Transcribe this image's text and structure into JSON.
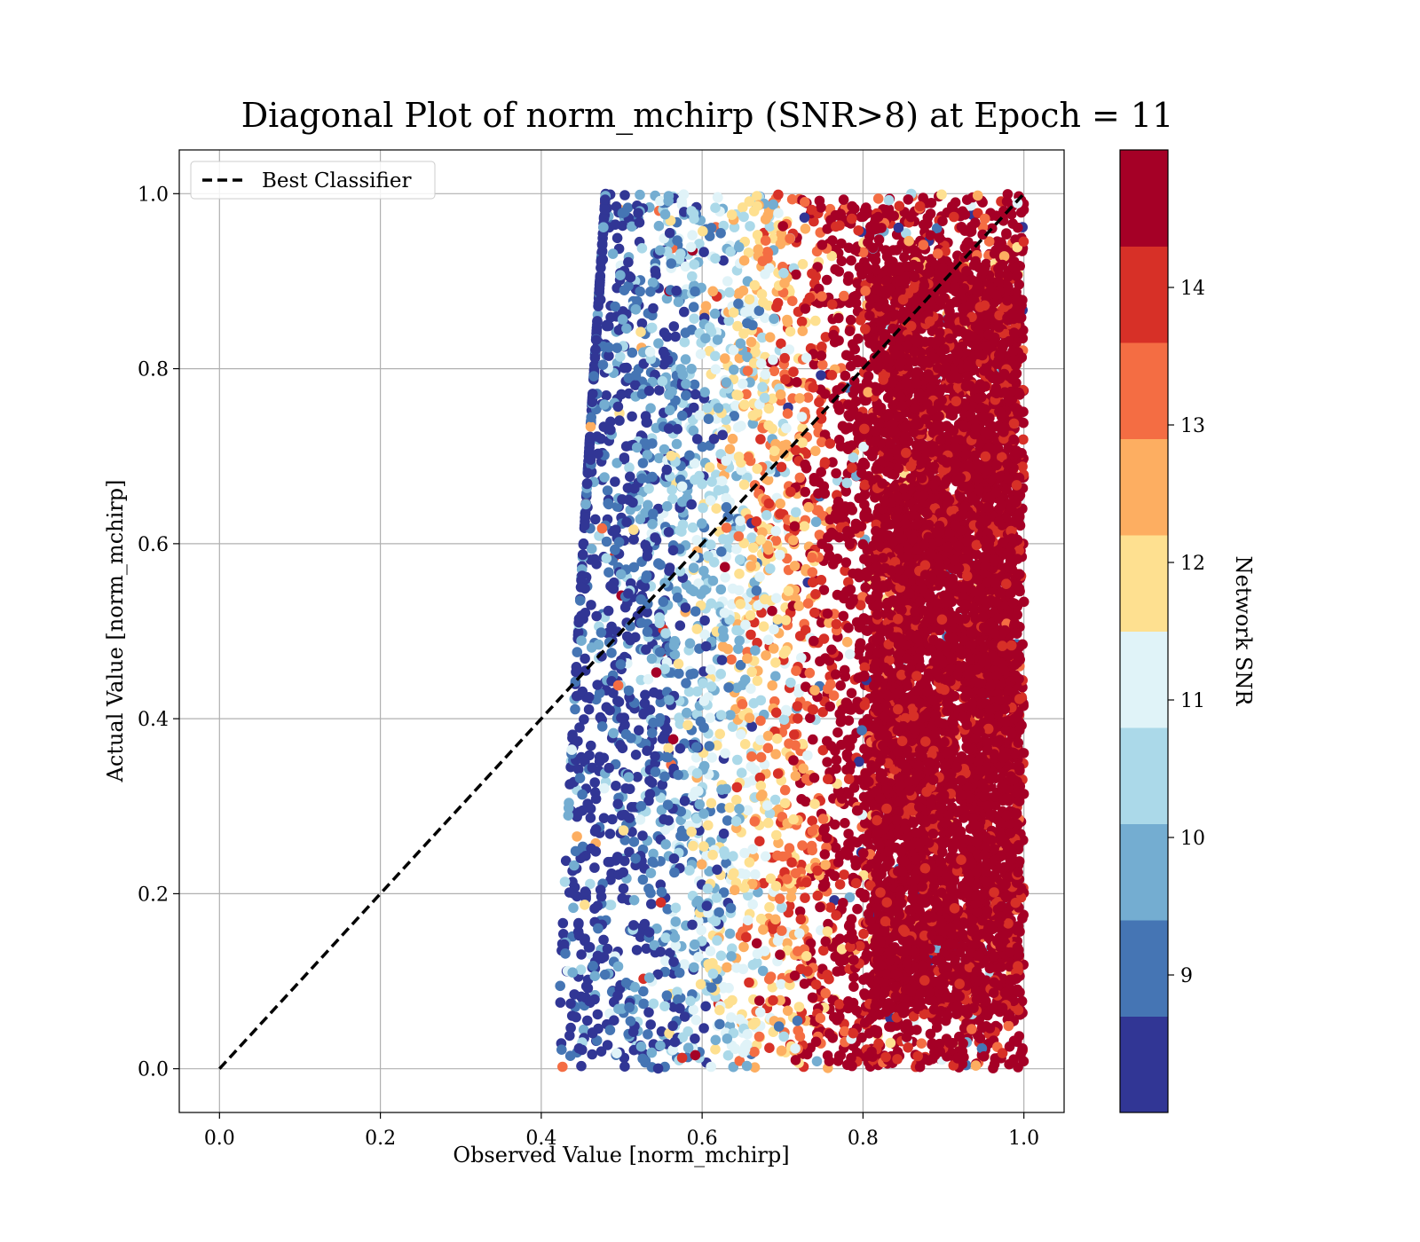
{
  "chart_data": {
    "type": "scatter",
    "title": "Diagonal Plot of norm_mchirp (SNR>8) at Epoch = 11",
    "xlabel": "Observed Value [norm_mchirp]",
    "ylabel": "Actual Value [norm_mchirp]",
    "xlim": [
      -0.05,
      1.05
    ],
    "ylim": [
      -0.05,
      1.05
    ],
    "xticks": [
      "0.0",
      "0.2",
      "0.4",
      "0.6",
      "0.8",
      "1.0"
    ],
    "yticks": [
      "0.0",
      "0.2",
      "0.4",
      "0.6",
      "0.8",
      "1.0"
    ],
    "grid": true,
    "legend": {
      "placement": "upper-left",
      "entries": [
        "Best Classifier"
      ]
    },
    "reference_line": {
      "name": "Best Classifier",
      "x": [
        0.0,
        1.0
      ],
      "y": [
        0.0,
        1.0
      ],
      "style": "dashed",
      "color": "#000000"
    },
    "scatter_description": {
      "x_range": [
        0.42,
        1.0
      ],
      "y_range": [
        0.0,
        1.0
      ],
      "color_variable": "Network SNR",
      "trend": "points with x near 0.8–1.0 have high SNR (>14); points with x between 0.42 and 0.65 have low SNR (8–10)"
    },
    "colorbar": {
      "label": "Network SNR",
      "range": [
        8,
        15
      ],
      "ticks": [
        "9",
        "10",
        "11",
        "12",
        "13",
        "14"
      ],
      "bins": [
        {
          "from": 8.0,
          "to": 8.7,
          "color": "#313695"
        },
        {
          "from": 8.7,
          "to": 9.4,
          "color": "#4575b4"
        },
        {
          "from": 9.4,
          "to": 10.1,
          "color": "#74add1"
        },
        {
          "from": 10.1,
          "to": 10.8,
          "color": "#abd9e9"
        },
        {
          "from": 10.8,
          "to": 11.5,
          "color": "#e0f3f8"
        },
        {
          "from": 11.5,
          "to": 12.2,
          "color": "#fee090"
        },
        {
          "from": 12.2,
          "to": 12.9,
          "color": "#fdae61"
        },
        {
          "from": 12.9,
          "to": 13.6,
          "color": "#f46d43"
        },
        {
          "from": 13.6,
          "to": 14.3,
          "color": "#d73027"
        },
        {
          "from": 14.3,
          "to": 15.0,
          "color": "#a50026"
        }
      ]
    }
  }
}
